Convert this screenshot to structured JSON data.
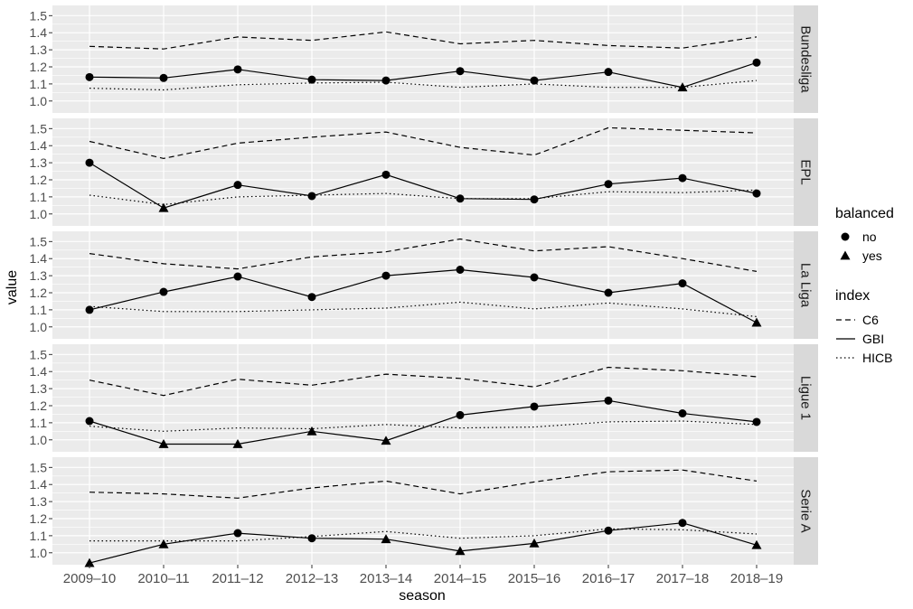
{
  "chart_data": {
    "type": "line",
    "title": "",
    "xlabel": "season",
    "ylabel": "value",
    "x": [
      "2009–10",
      "2010–11",
      "2011–12",
      "2012–13",
      "2013–14",
      "2014–15",
      "2015–16",
      "2016–17",
      "2017–18",
      "2018–19"
    ],
    "y_ticks": [
      "1.0",
      "1.1",
      "1.2",
      "1.3",
      "1.4",
      "1.5"
    ],
    "ylim": [
      0.93,
      1.56
    ],
    "grid": true,
    "facets": [
      {
        "label": "Bundesliga",
        "series": [
          {
            "name": "C6",
            "values": [
              1.32,
              1.305,
              1.375,
              1.355,
              1.405,
              1.335,
              1.355,
              1.325,
              1.31,
              1.375
            ]
          },
          {
            "name": "GBI",
            "values": [
              1.14,
              1.135,
              1.185,
              1.125,
              1.12,
              1.175,
              1.12,
              1.17,
              1.08,
              1.225
            ],
            "balanced": [
              "no",
              "no",
              "no",
              "no",
              "no",
              "no",
              "no",
              "no",
              "yes",
              "no"
            ]
          },
          {
            "name": "HICB",
            "values": [
              1.075,
              1.065,
              1.095,
              1.105,
              1.11,
              1.08,
              1.1,
              1.08,
              1.08,
              1.12
            ]
          }
        ]
      },
      {
        "label": "EPL",
        "series": [
          {
            "name": "C6",
            "values": [
              1.425,
              1.325,
              1.415,
              1.45,
              1.48,
              1.39,
              1.345,
              1.505,
              1.49,
              1.475
            ]
          },
          {
            "name": "GBI",
            "values": [
              1.3,
              1.035,
              1.17,
              1.105,
              1.23,
              1.09,
              1.085,
              1.175,
              1.21,
              1.12
            ],
            "balanced": [
              "no",
              "yes",
              "no",
              "no",
              "no",
              "no",
              "no",
              "no",
              "no",
              "no"
            ]
          },
          {
            "name": "HICB",
            "values": [
              1.11,
              1.055,
              1.1,
              1.11,
              1.12,
              1.09,
              1.09,
              1.13,
              1.125,
              1.14
            ]
          }
        ]
      },
      {
        "label": "La Liga",
        "series": [
          {
            "name": "C6",
            "values": [
              1.43,
              1.37,
              1.34,
              1.41,
              1.44,
              1.515,
              1.445,
              1.47,
              1.4,
              1.325
            ]
          },
          {
            "name": "GBI",
            "values": [
              1.1,
              1.205,
              1.295,
              1.175,
              1.3,
              1.335,
              1.29,
              1.2,
              1.255,
              1.025
            ],
            "balanced": [
              "no",
              "no",
              "no",
              "no",
              "no",
              "no",
              "no",
              "no",
              "no",
              "yes"
            ]
          },
          {
            "name": "HICB",
            "values": [
              1.12,
              1.09,
              1.09,
              1.1,
              1.11,
              1.145,
              1.105,
              1.14,
              1.105,
              1.06
            ]
          }
        ]
      },
      {
        "label": "Ligue 1",
        "series": [
          {
            "name": "C6",
            "values": [
              1.35,
              1.26,
              1.355,
              1.32,
              1.385,
              1.36,
              1.31,
              1.425,
              1.405,
              1.37
            ]
          },
          {
            "name": "GBI",
            "values": [
              1.11,
              0.975,
              0.975,
              1.05,
              0.995,
              1.145,
              1.195,
              1.23,
              1.155,
              1.105
            ],
            "balanced": [
              "no",
              "yes",
              "yes",
              "yes",
              "yes",
              "no",
              "no",
              "no",
              "no",
              "no"
            ]
          },
          {
            "name": "HICB",
            "values": [
              1.08,
              1.05,
              1.07,
              1.065,
              1.09,
              1.07,
              1.075,
              1.105,
              1.11,
              1.09
            ]
          }
        ]
      },
      {
        "label": "Serie A",
        "series": [
          {
            "name": "C6",
            "values": [
              1.355,
              1.345,
              1.32,
              1.38,
              1.42,
              1.345,
              1.415,
              1.475,
              1.485,
              1.42
            ]
          },
          {
            "name": "GBI",
            "values": [
              0.94,
              1.05,
              1.115,
              1.085,
              1.08,
              1.01,
              1.055,
              1.13,
              1.175,
              1.045
            ],
            "balanced": [
              "yes",
              "yes",
              "no",
              "no",
              "yes",
              "yes",
              "yes",
              "no",
              "no",
              "yes"
            ]
          },
          {
            "name": "HICB",
            "values": [
              1.07,
              1.07,
              1.07,
              1.095,
              1.125,
              1.085,
              1.1,
              1.14,
              1.135,
              1.11
            ]
          }
        ]
      }
    ],
    "legends": [
      {
        "title": "balanced",
        "entries": [
          {
            "label": "no",
            "shape": "circle"
          },
          {
            "label": "yes",
            "shape": "triangle"
          }
        ]
      },
      {
        "title": "index",
        "entries": [
          {
            "label": "C6",
            "linetype": "dashed"
          },
          {
            "label": "GBI",
            "linetype": "solid"
          },
          {
            "label": "HICB",
            "linetype": "dotted"
          }
        ]
      }
    ],
    "legend_position": "right",
    "colors": {
      "panel_background": "#ebebeb",
      "grid": "#ffffff",
      "strip": "#d9d9d9",
      "lines": "#000000"
    }
  }
}
